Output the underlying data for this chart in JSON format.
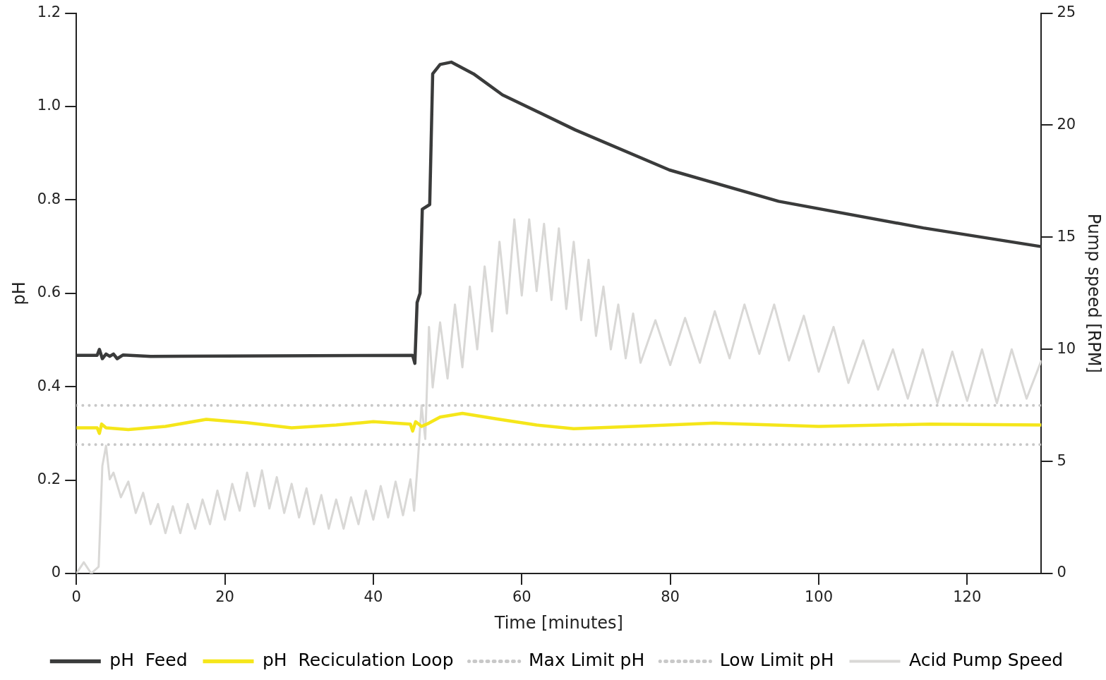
{
  "chart_data": {
    "type": "line",
    "xlabel": "Time [minutes]",
    "ylabel": "pH",
    "y2label": "Pump speed [RPM]",
    "xlim": [
      0,
      130
    ],
    "xticks": [
      0,
      20,
      40,
      60,
      80,
      100,
      120
    ],
    "ylim": [
      0,
      1.2
    ],
    "yticks": [
      0,
      0.2,
      0.4,
      0.6,
      0.8,
      {
        "value": 1,
        "label": "1.0"
      },
      1.2
    ],
    "y2lim": [
      0,
      25
    ],
    "y2ticks": [
      0,
      5,
      10,
      15,
      20,
      25
    ],
    "grid": false,
    "legend": "bottom",
    "marker": "none",
    "series": [
      {
        "name": "pH  Feed",
        "color": "#3a3b3b",
        "line_style": "solid",
        "x": [
          0,
          2.8,
          3.1,
          3.5,
          4,
          4.5,
          5,
          5.5,
          6.3,
          10,
          45.3,
          45.6,
          45.9,
          46.3,
          46.6,
          47.6,
          48,
          49,
          50.5,
          53.5,
          57.4,
          67.2,
          79.9,
          94.6,
          114.1,
          130
        ],
        "values": [
          0.467,
          0.467,
          0.48,
          0.46,
          0.47,
          0.465,
          0.47,
          0.46,
          0.468,
          0.465,
          0.467,
          0.45,
          0.58,
          0.6,
          0.78,
          0.79,
          1.07,
          1.09,
          1.095,
          1.07,
          1.025,
          0.95,
          0.864,
          0.797,
          0.74,
          0.7
        ]
      },
      {
        "name": "pH  Reciculation Loop",
        "color": "#f5e61a",
        "line_style": "solid",
        "x": [
          0,
          2.8,
          3.1,
          3.4,
          4,
          7,
          12,
          17.5,
          23,
          29,
          35,
          40,
          45,
          45.3,
          45.7,
          46.5,
          47.5,
          49,
          52,
          57,
          62,
          67,
          75,
          86,
          100,
          115,
          130
        ],
        "values": [
          0.312,
          0.312,
          0.3,
          0.32,
          0.312,
          0.308,
          0.315,
          0.33,
          0.323,
          0.312,
          0.318,
          0.325,
          0.32,
          0.305,
          0.325,
          0.315,
          0.322,
          0.335,
          0.343,
          0.33,
          0.318,
          0.31,
          0.315,
          0.322,
          0.315,
          0.32,
          0.318
        ]
      },
      {
        "name": "Max Limit pH",
        "color": "#c8c8c8",
        "line_style": "dotted",
        "x": [
          0,
          130
        ],
        "values": [
          0.36,
          0.36
        ]
      },
      {
        "name": "Low Limit pH",
        "color": "#c8c8c8",
        "line_style": "dotted",
        "x": [
          0,
          130
        ],
        "values": [
          0.276,
          0.276
        ]
      },
      {
        "name": "Acid Pump Speed",
        "color": "#d9d8d6",
        "line_style": "solid",
        "axis": "y2",
        "x": [
          0,
          1,
          2,
          3,
          3.5,
          4,
          4.5,
          5,
          6,
          7,
          8,
          9,
          10,
          11,
          12,
          13,
          14,
          15,
          16,
          17,
          18,
          19,
          20,
          21,
          22,
          23,
          24,
          25,
          26,
          27,
          28,
          29,
          30,
          31,
          32,
          33,
          34,
          35,
          36,
          37,
          38,
          39,
          40,
          41,
          42,
          43,
          44,
          45,
          45.5,
          46,
          46.5,
          47,
          47.5,
          48,
          49,
          50,
          51,
          52,
          53,
          54,
          55,
          56,
          57,
          58,
          59,
          60,
          61,
          62,
          63,
          64,
          65,
          66,
          67,
          68,
          69,
          70,
          71,
          72,
          73,
          74,
          75,
          76,
          78,
          80,
          82,
          84,
          86,
          88,
          90,
          92,
          94,
          96,
          98,
          100,
          102,
          104,
          106,
          108,
          110,
          112,
          114,
          116,
          118,
          120,
          122,
          124,
          126,
          128,
          130
        ],
        "values": [
          0,
          0.5,
          0,
          0.3,
          4.8,
          5.7,
          4.2,
          4.5,
          3.4,
          4.1,
          2.7,
          3.6,
          2.2,
          3.1,
          1.8,
          3.0,
          1.8,
          3.1,
          2.0,
          3.3,
          2.2,
          3.7,
          2.4,
          4.0,
          2.8,
          4.5,
          3.0,
          4.6,
          2.9,
          4.3,
          2.7,
          4.0,
          2.5,
          3.8,
          2.2,
          3.5,
          2.0,
          3.3,
          2.0,
          3.4,
          2.2,
          3.7,
          2.4,
          3.9,
          2.5,
          4.1,
          2.6,
          4.2,
          2.8,
          5.0,
          7.5,
          6.0,
          11.0,
          8.3,
          11.2,
          8.7,
          12.0,
          9.2,
          12.8,
          10.0,
          13.7,
          10.8,
          14.8,
          11.6,
          15.8,
          12.4,
          15.8,
          12.6,
          15.6,
          12.2,
          15.4,
          11.8,
          14.8,
          11.3,
          14.0,
          10.6,
          12.8,
          10.0,
          12.0,
          9.6,
          11.6,
          9.4,
          11.3,
          9.3,
          11.4,
          9.4,
          11.7,
          9.6,
          12.0,
          9.8,
          12.0,
          9.5,
          11.5,
          9.0,
          11.0,
          8.5,
          10.4,
          8.2,
          10.0,
          7.8,
          10.0,
          7.6,
          9.9,
          7.7,
          10.0,
          7.6,
          10.0,
          7.8,
          9.5
        ]
      }
    ]
  }
}
